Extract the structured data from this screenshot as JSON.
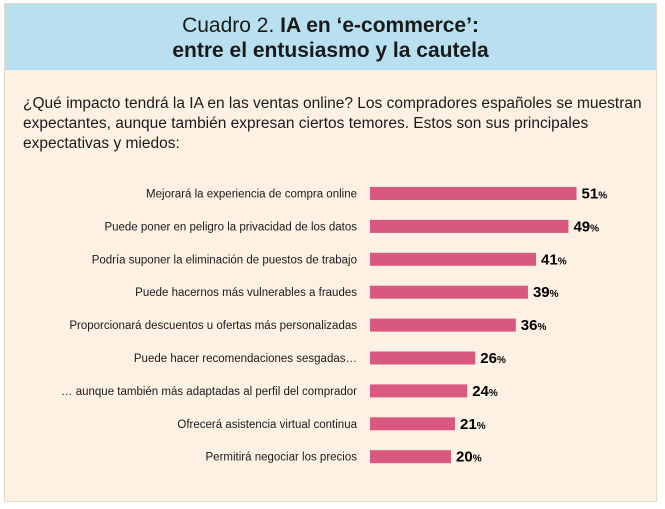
{
  "header": {
    "title_prefix": "Cuadro 2.",
    "title_bold_1": "IA en ‘e-commerce’:",
    "title_line2": "entre el entusiasmo y la cautela"
  },
  "intro": "¿Qué impacto tendrá la IA en las ventas online? Los compradores españoles se muestran expectantes, aunque también expresan ciertos temores. Estos son sus principales expectativas y miedos:",
  "colors": {
    "bar": "#d9587f",
    "header_bg": "#b8e0f0",
    "panel_bg": "#fdf1e3"
  },
  "chart_data": {
    "type": "bar",
    "orientation": "horizontal",
    "unit": "%",
    "categories": [
      "Mejorará la experiencia de compra online",
      "Puede poner en peligro la privacidad de los datos",
      "Podría suponer la eliminación de puestos de trabajo",
      "Puede hacernos más vulnerables a fraudes",
      "Proporcionará descuentos u ofertas más personalizadas",
      "Puede hacer recomendaciones sesgadas…",
      "… aunque también más adaptadas al perfil del comprador",
      "Ofrecerá asistencia virtual continua",
      "Permitirá negociar los precios"
    ],
    "values": [
      51,
      49,
      41,
      39,
      36,
      26,
      24,
      21,
      20
    ],
    "title": "",
    "xlabel": "",
    "ylabel": ""
  }
}
